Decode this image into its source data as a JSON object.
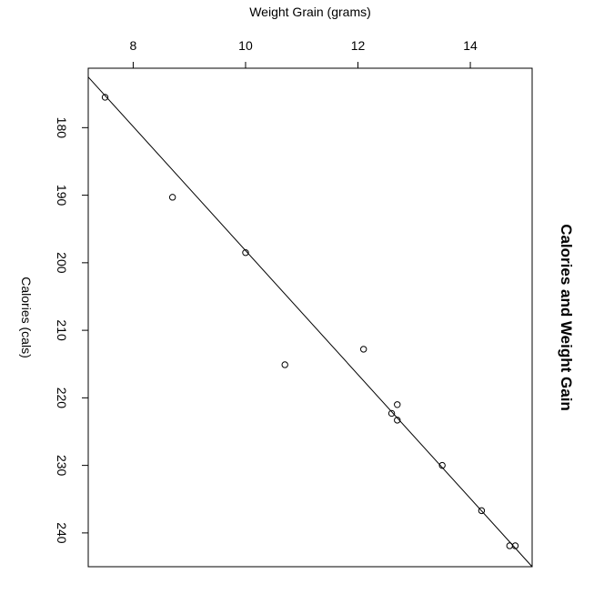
{
  "chart_data": {
    "type": "scatter",
    "title": "Calories and Weight Gain",
    "xlabel": "Weight Grain (grams)",
    "ylabel": "Calories (cals)",
    "x_ticks": [
      8,
      10,
      12,
      14
    ],
    "y_ticks": [
      180,
      190,
      200,
      210,
      220,
      230,
      240
    ],
    "xlim": [
      7.2,
      15.1
    ],
    "ylim": [
      171.2,
      245.0
    ],
    "x_axis_position": "top",
    "y_axis_direction": "downward",
    "y_tick_orientation": "rotated-90",
    "grid": false,
    "points": [
      {
        "x": 7.5,
        "y": 175.5
      },
      {
        "x": 8.7,
        "y": 190.3
      },
      {
        "x": 10.0,
        "y": 198.5
      },
      {
        "x": 10.7,
        "y": 215.1
      },
      {
        "x": 12.1,
        "y": 212.8
      },
      {
        "x": 12.6,
        "y": 222.3
      },
      {
        "x": 12.7,
        "y": 221.0
      },
      {
        "x": 12.7,
        "y": 223.3
      },
      {
        "x": 13.5,
        "y": 230.0
      },
      {
        "x": 14.2,
        "y": 236.7
      },
      {
        "x": 14.7,
        "y": 241.9
      },
      {
        "x": 14.8,
        "y": 241.9
      }
    ],
    "regression_line": {
      "x_start": 7.2,
      "y_start": 172.5,
      "x_end": 15.1,
      "y_end": 245.0
    }
  }
}
